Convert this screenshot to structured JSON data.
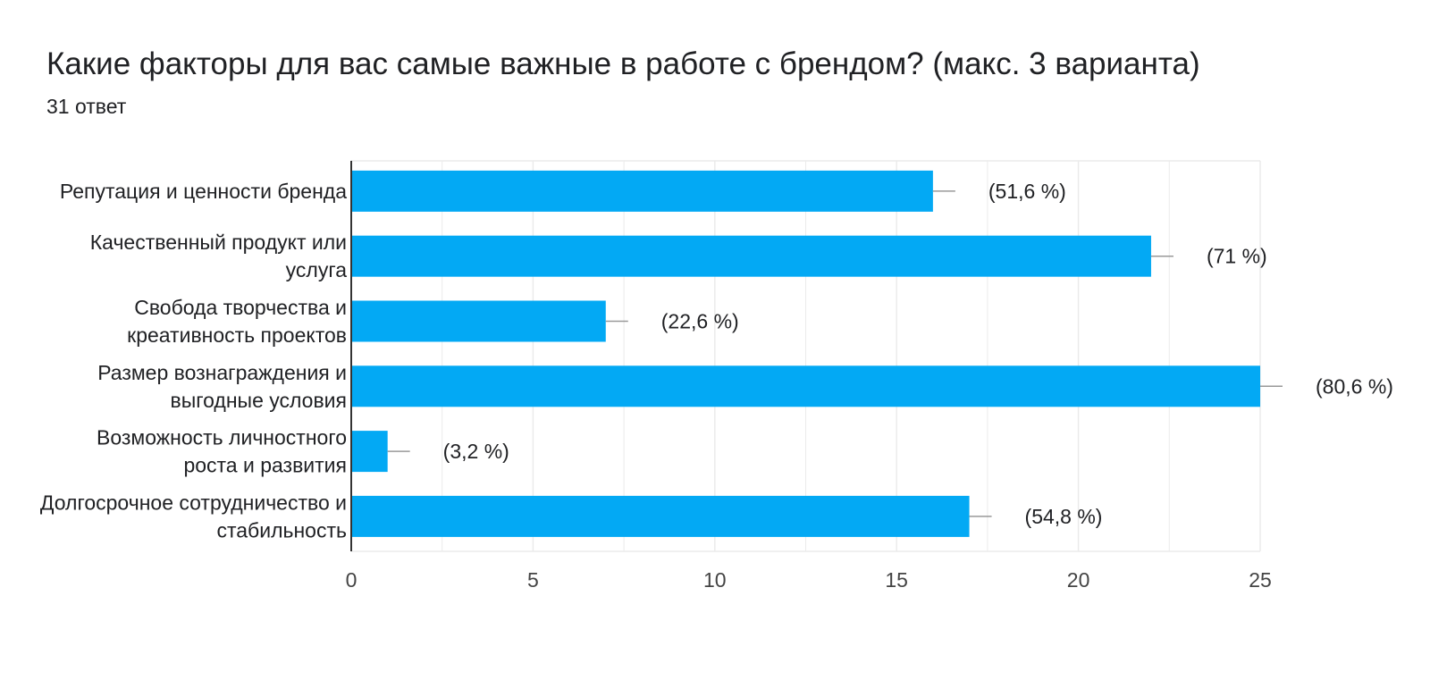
{
  "chart_data": {
    "type": "bar",
    "orientation": "horizontal",
    "title": "Какие факторы для вас самые важные в работе с брендом? (макс. 3 варианта)",
    "subtitle": "31 ответ",
    "categories": [
      [
        "Репутация и ценности бренда"
      ],
      [
        "Качественный продукт или",
        "услуга"
      ],
      [
        "Свобода творчества и",
        "креативность проектов"
      ],
      [
        "Размер вознаграждения и",
        "выгодные условия"
      ],
      [
        "Возможность личностного",
        "роста и развития"
      ],
      [
        "Долгосрочное сотрудничество и",
        "стабильность"
      ]
    ],
    "values": [
      16,
      22,
      7,
      25,
      1,
      17
    ],
    "data_labels": [
      "(51,6 %)",
      "(71 %)",
      "(22,6 %)",
      "(80,6 %)",
      "(3,2 %)",
      "(54,8 %)"
    ],
    "xlim": [
      0,
      25
    ],
    "xticks": [
      "0",
      "5",
      "10",
      "15",
      "20",
      "25"
    ],
    "xlabel": "",
    "ylabel": "",
    "grid": true,
    "bar_color": "#03a9f4",
    "grid_color": "#ebebeb",
    "axis_color": "#333333",
    "whisker_color": "#999999",
    "text_color": "#202124",
    "tick_color": "#444444"
  }
}
